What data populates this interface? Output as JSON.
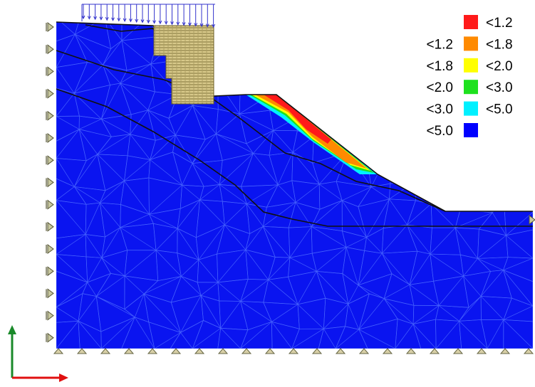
{
  "legend": {
    "entries": [
      {
        "left_label": "",
        "right_label": "<1.2",
        "color": "#ff1a1a"
      },
      {
        "left_label": "<1.2",
        "right_label": "<1.8",
        "color": "#ff8a00"
      },
      {
        "left_label": "<1.8",
        "right_label": "<2.0",
        "color": "#ffff00"
      },
      {
        "left_label": "<2.0",
        "right_label": "<3.0",
        "color": "#1ee11e"
      },
      {
        "left_label": "<3.0",
        "right_label": "<5.0",
        "color": "#00f0ff"
      },
      {
        "left_label": "<5.0",
        "right_label": "",
        "color": "#0000ff"
      }
    ]
  },
  "colors": {
    "domain_fill": "#0a14f0",
    "mesh_line": "#4d6bff",
    "layer_line": "#111111",
    "wall_fill": "#d8c98a",
    "wall_hatch": "#5a5020",
    "load_arrow": "#3333cc",
    "support": "#8a8a6a",
    "axis_y": "#1a8a2a",
    "axis_x": "#e01010"
  },
  "icons": {
    "left_supports": "roller-support-icon",
    "bottom_supports": "pin-support-icon",
    "load": "distributed-load-icon",
    "axes": "coordinate-axes-icon"
  }
}
